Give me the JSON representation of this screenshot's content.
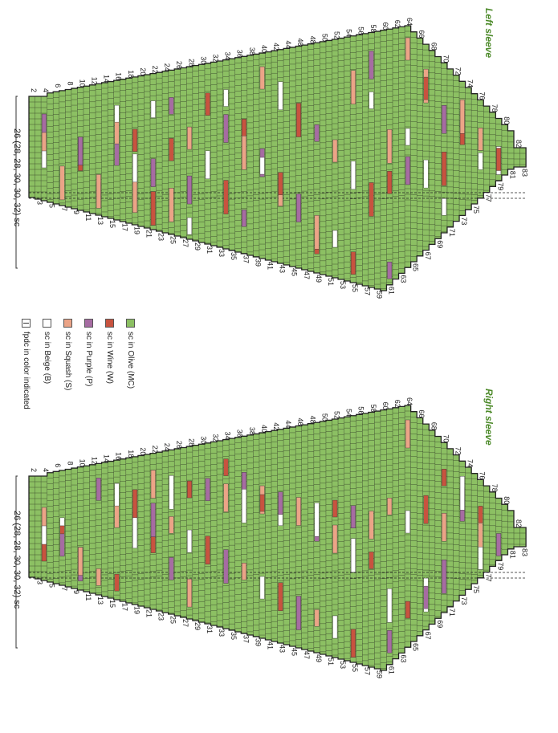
{
  "sleeves": [
    {
      "title": "Left sleeve",
      "width_label": "26 (28, 28, 30, 30, 32) sc",
      "even_rows": [
        "2",
        "4",
        "6",
        "8",
        "10",
        "12",
        "14",
        "16",
        "18",
        "20",
        "22",
        "24",
        "26",
        "28",
        "30",
        "32",
        "34",
        "36",
        "38",
        "40",
        "42",
        "44",
        "46",
        "48",
        "50",
        "52",
        "54",
        "56",
        "58",
        "60",
        "62",
        "64",
        "66",
        "68",
        "70",
        "72",
        "74",
        "76",
        "78",
        "80",
        "82"
      ],
      "odd_rows": [
        "3",
        "5",
        "7",
        "9",
        "11",
        "13",
        "15",
        "17",
        "19",
        "21",
        "23",
        "25",
        "27",
        "29",
        "31",
        "33",
        "35",
        "37",
        "39",
        "41",
        "43",
        "45",
        "47",
        "49",
        "51",
        "53",
        "55",
        "57",
        "59",
        "61",
        "63",
        "65",
        "67",
        "69",
        "71",
        "73",
        "75",
        "77",
        "79",
        "81",
        "83"
      ]
    },
    {
      "title": "Right sleeve",
      "width_label": "26 (28, 28, 30, 30, 32) sc",
      "even_rows": [
        "2",
        "4",
        "6",
        "8",
        "10",
        "12",
        "14",
        "16",
        "18",
        "20",
        "22",
        "24",
        "26",
        "28",
        "30",
        "32",
        "34",
        "36",
        "38",
        "40",
        "42",
        "44",
        "46",
        "48",
        "50",
        "52",
        "54",
        "56",
        "58",
        "60",
        "62",
        "64",
        "66",
        "68",
        "70",
        "72",
        "74",
        "76",
        "78",
        "80",
        "82"
      ],
      "odd_rows": [
        "3",
        "5",
        "7",
        "9",
        "11",
        "13",
        "15",
        "17",
        "19",
        "21",
        "23",
        "25",
        "27",
        "29",
        "31",
        "33",
        "35",
        "37",
        "39",
        "41",
        "43",
        "45",
        "47",
        "49",
        "51",
        "53",
        "55",
        "57",
        "59",
        "61",
        "63",
        "65",
        "67",
        "69",
        "71",
        "73",
        "75",
        "77",
        "79",
        "81",
        "83"
      ]
    }
  ],
  "legend": [
    {
      "label": "sc in Olive (MC)",
      "color": "#8cc063",
      "kind": "swatch"
    },
    {
      "label": "sc in Wine (W)",
      "color": "#c8533f",
      "kind": "swatch"
    },
    {
      "label": "sc in Purple (P)",
      "color": "#a66ca2",
      "kind": "swatch"
    },
    {
      "label": "sc in Squash (S)",
      "color": "#eba487",
      "kind": "swatch"
    },
    {
      "label": "sc in Beige (B)",
      "color": "#ffffff",
      "kind": "swatch"
    },
    {
      "label": "fpdc in color indicated",
      "color": "#ffffff",
      "kind": "key"
    }
  ],
  "colors": {
    "olive": "#8cc063",
    "wine": "#c8533f",
    "purple": "#a66ca2",
    "squash": "#eba487",
    "beige": "#ffffff",
    "grid_line": "#3b4a2c",
    "title_green": "#4d8a2a"
  }
}
